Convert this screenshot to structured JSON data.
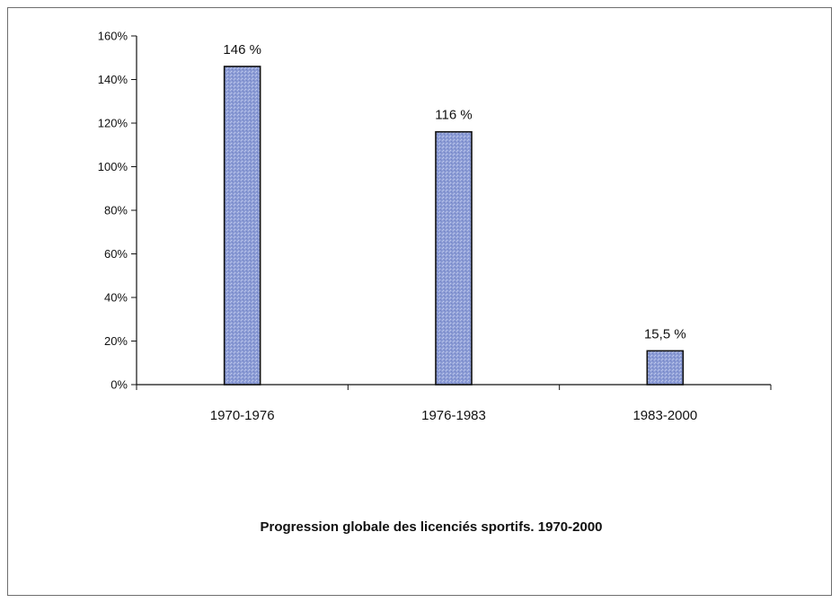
{
  "chart_data": {
    "type": "bar",
    "title": "Progression globale des licenciés sportifs. 1970-2000",
    "categories": [
      "1970-1976",
      "1976-1983",
      "1983-2000"
    ],
    "values": [
      146,
      116,
      15.5
    ],
    "data_labels": [
      "146 %",
      "116 %",
      "15,5 %"
    ],
    "yticks": [
      "0%",
      "20%",
      "40%",
      "60%",
      "80%",
      "100%",
      "120%",
      "140%",
      "160%"
    ],
    "ylim": [
      0,
      160
    ],
    "grid": false,
    "bar_color": "#8e9ed6",
    "bar_edge_color": "#111111"
  }
}
